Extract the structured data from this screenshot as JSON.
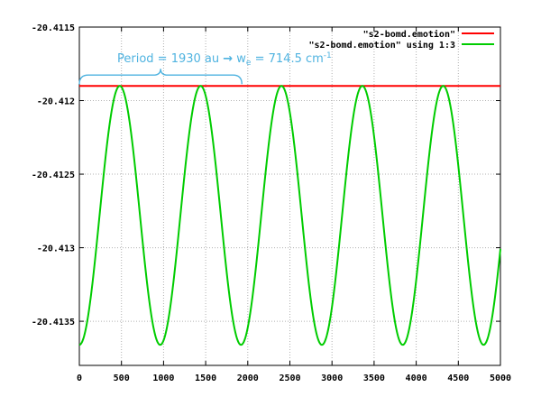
{
  "chart_data": {
    "type": "line",
    "title": "",
    "xlabel": "",
    "ylabel": "",
    "xlim": [
      0,
      5000
    ],
    "ylim": [
      -20.4138,
      -20.4115
    ],
    "xticks": [
      0,
      500,
      1000,
      1500,
      2000,
      2500,
      3000,
      3500,
      4000,
      4500,
      5000
    ],
    "xtick_labels": [
      "0",
      "500",
      "1000",
      "1500",
      "2000",
      "2500",
      "3000",
      "3500",
      "4000",
      "4500",
      "5000"
    ],
    "yticks": [
      -20.4115,
      -20.412,
      -20.4125,
      -20.413,
      -20.4135
    ],
    "ytick_labels": [
      "-20.4115",
      "-20.412",
      "-20.4125",
      "-20.413",
      "-20.4135"
    ],
    "grid": true,
    "legend_position": "top-right",
    "series": [
      {
        "name": "\"s2-bomd.emotion\"",
        "color": "#ff0000",
        "x": [
          0,
          5000
        ],
        "y": [
          -20.4119,
          -20.4119
        ]
      },
      {
        "name": "\"s2-bomd.emotion\" using 1:3",
        "color": "#00cc00",
        "function": "y = center - amplitude*cos(2*pi*(x - peak_x)/period)",
        "peak_x": 0,
        "period": 960,
        "center": -20.41278,
        "amplitude": 0.00088,
        "x_range": [
          0,
          5000
        ],
        "max_y": -20.4119,
        "min_y": -20.41366
      }
    ],
    "annotation": {
      "prefix": "Period = 1930 au ",
      "arrow": "→",
      "w": " w",
      "sub": "e",
      "mid": " = 714.5 cm",
      "sup": "-1",
      "color": "#4fb3e0",
      "brace_x_start": 0,
      "brace_x_end": 1930,
      "brace_y": -20.4119
    }
  }
}
